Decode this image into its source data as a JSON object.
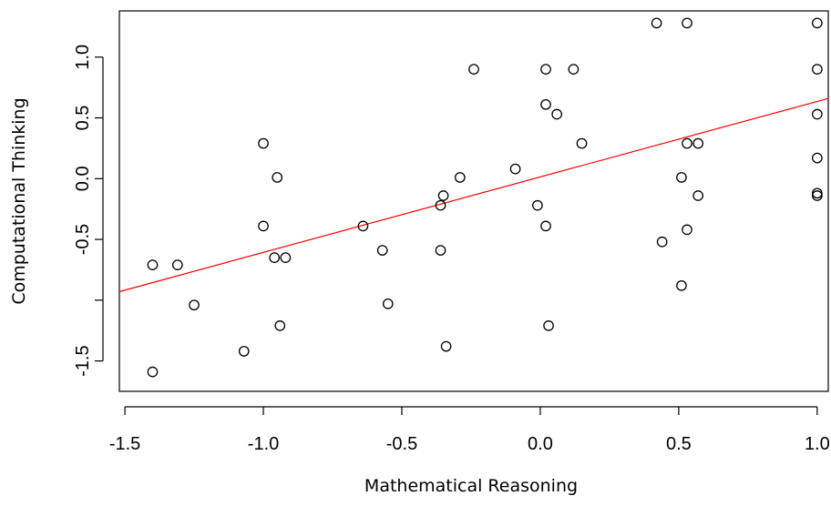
{
  "chart_data": {
    "type": "scatter",
    "title": "",
    "xlabel": "Mathematical Reasoning",
    "ylabel": "Computational Thinking",
    "xlim": [
      -1.52,
      1.04
    ],
    "ylim": [
      -1.75,
      1.38
    ],
    "x_ticks": [
      -1.5,
      -1.0,
      -0.5,
      0.0,
      0.5,
      1.0
    ],
    "x_tick_labels": [
      "-1.5",
      "-1.0",
      "-0.5",
      "0.0",
      "0.5",
      "1.0"
    ],
    "y_ticks": [
      -1.5,
      -1.0,
      -0.5,
      0.0,
      0.5,
      1.0
    ],
    "y_tick_labels": [
      "-1.5",
      "",
      "-0.5",
      "0.0",
      "0.5",
      "1.0"
    ],
    "grid": false,
    "legend": "none",
    "fit_line": {
      "color": "#ff0000",
      "x1": -1.52,
      "y1": -0.93,
      "x2": 1.04,
      "y2": 0.66
    },
    "points": [
      {
        "x": -1.4,
        "y": -0.71
      },
      {
        "x": -1.31,
        "y": -0.71
      },
      {
        "x": -1.25,
        "y": -1.04
      },
      {
        "x": -1.4,
        "y": -1.59
      },
      {
        "x": -1.07,
        "y": -1.42
      },
      {
        "x": -1.0,
        "y": 0.29
      },
      {
        "x": -1.0,
        "y": -0.39
      },
      {
        "x": -0.96,
        "y": -0.65
      },
      {
        "x": -0.95,
        "y": 0.01
      },
      {
        "x": -0.92,
        "y": -0.65
      },
      {
        "x": -0.94,
        "y": -1.21
      },
      {
        "x": -0.64,
        "y": -0.39
      },
      {
        "x": -0.57,
        "y": -0.59
      },
      {
        "x": -0.55,
        "y": -1.03
      },
      {
        "x": -0.36,
        "y": -0.22
      },
      {
        "x": -0.35,
        "y": -0.14
      },
      {
        "x": -0.36,
        "y": -0.59
      },
      {
        "x": -0.34,
        "y": -1.38
      },
      {
        "x": -0.29,
        "y": 0.01
      },
      {
        "x": -0.24,
        "y": 0.9
      },
      {
        "x": -0.09,
        "y": 0.08
      },
      {
        "x": -0.01,
        "y": -0.22
      },
      {
        "x": 0.02,
        "y": 0.9
      },
      {
        "x": 0.02,
        "y": 0.61
      },
      {
        "x": 0.02,
        "y": -0.39
      },
      {
        "x": 0.03,
        "y": -1.21
      },
      {
        "x": 0.06,
        "y": 0.53
      },
      {
        "x": 0.12,
        "y": 0.9
      },
      {
        "x": 0.15,
        "y": 0.29
      },
      {
        "x": 0.42,
        "y": 1.28
      },
      {
        "x": 0.53,
        "y": 1.28
      },
      {
        "x": 0.44,
        "y": -0.52
      },
      {
        "x": 0.51,
        "y": 0.01
      },
      {
        "x": 0.53,
        "y": 0.29
      },
      {
        "x": 0.57,
        "y": 0.29
      },
      {
        "x": 0.57,
        "y": -0.14
      },
      {
        "x": 0.53,
        "y": -0.42
      },
      {
        "x": 0.51,
        "y": -0.88
      },
      {
        "x": 1.0,
        "y": 1.28
      },
      {
        "x": 1.0,
        "y": 0.9
      },
      {
        "x": 1.0,
        "y": 0.53
      },
      {
        "x": 1.0,
        "y": 0.17
      },
      {
        "x": 1.0,
        "y": -0.12
      },
      {
        "x": 1.0,
        "y": -0.14
      }
    ]
  }
}
